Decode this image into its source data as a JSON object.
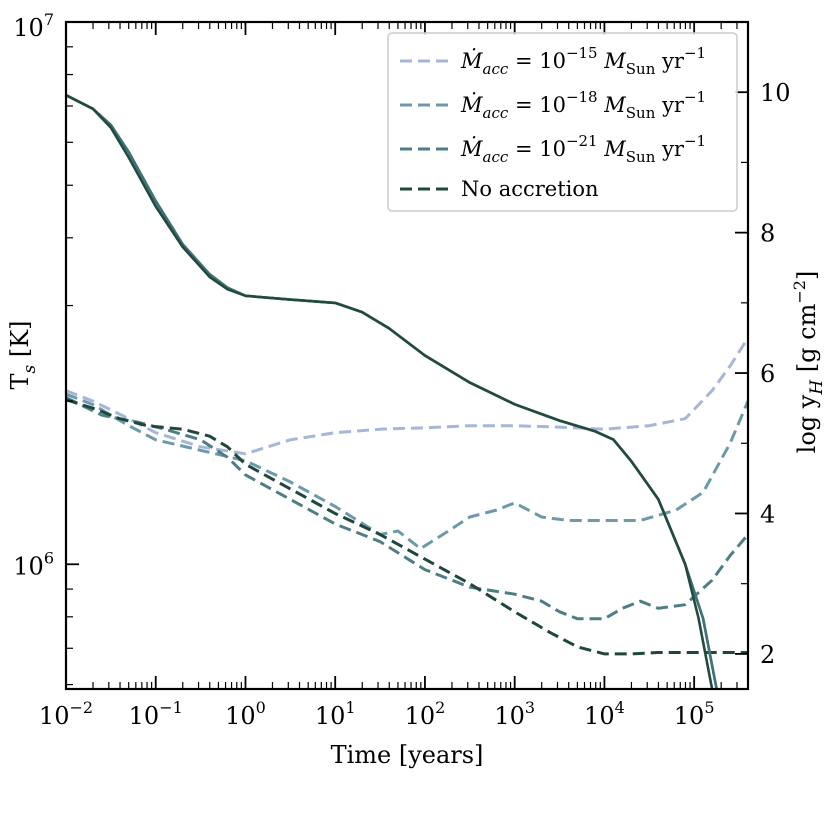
{
  "chart_data": {
    "type": "line",
    "xlabel": "Time [years]",
    "ylabel_left": "T_s [K]",
    "ylabel_right": "log y_H [g cm^-2]",
    "x_scale": "log",
    "xlim_log10": [
      -2,
      5.6
    ],
    "ylim_left_log10": [
      5.77,
      7.0
    ],
    "ylim_right": [
      1.5,
      11.0
    ],
    "x_ticks": [
      {
        "exp": -2,
        "label": "10",
        "sup": "−2"
      },
      {
        "exp": -1,
        "label": "10",
        "sup": "−1"
      },
      {
        "exp": 0,
        "label": "10",
        "sup": "0"
      },
      {
        "exp": 1,
        "label": "10",
        "sup": "1"
      },
      {
        "exp": 2,
        "label": "10",
        "sup": "2"
      },
      {
        "exp": 3,
        "label": "10",
        "sup": "3"
      },
      {
        "exp": 4,
        "label": "10",
        "sup": "4"
      },
      {
        "exp": 5,
        "label": "10",
        "sup": "5"
      }
    ],
    "y_left_ticks": [
      {
        "exp": 6,
        "label": "10",
        "sup": "6"
      },
      {
        "exp": 7,
        "label": "10",
        "sup": "7"
      }
    ],
    "y_right_ticks": [
      2,
      4,
      6,
      8,
      10
    ],
    "temperature_series": [
      {
        "name": "T_s (accretion 1e-15)",
        "color": "#5d8e9a",
        "points": [
          [
            -2,
            6.865
          ],
          [
            -1.7,
            6.84
          ],
          [
            -1.5,
            6.81
          ],
          [
            -1.3,
            6.76
          ],
          [
            -1,
            6.67
          ],
          [
            -0.7,
            6.59
          ],
          [
            -0.4,
            6.535
          ],
          [
            -0.2,
            6.51
          ],
          [
            0,
            6.495
          ],
          [
            0.5,
            6.488
          ],
          [
            1,
            6.482
          ],
          [
            1.3,
            6.465
          ],
          [
            1.6,
            6.435
          ],
          [
            2,
            6.385
          ],
          [
            2.5,
            6.335
          ],
          [
            3,
            6.295
          ],
          [
            3.5,
            6.265
          ],
          [
            3.9,
            6.245
          ],
          [
            4.1,
            6.23
          ],
          [
            4.3,
            6.19
          ],
          [
            4.6,
            6.12
          ],
          [
            4.9,
            6.0
          ],
          [
            5.1,
            5.9
          ],
          [
            5.25,
            5.77
          ]
        ]
      },
      {
        "name": "T_s (accretion 1e-18)",
        "color": "#3f7276",
        "points": [
          [
            -2,
            6.865
          ],
          [
            -1.7,
            6.84
          ],
          [
            -1.5,
            6.81
          ],
          [
            -1.3,
            6.76
          ],
          [
            -1,
            6.67
          ],
          [
            -0.7,
            6.59
          ],
          [
            -0.4,
            6.535
          ],
          [
            -0.2,
            6.51
          ],
          [
            0,
            6.495
          ],
          [
            0.5,
            6.488
          ],
          [
            1,
            6.482
          ],
          [
            1.3,
            6.465
          ],
          [
            1.6,
            6.435
          ],
          [
            2,
            6.385
          ],
          [
            2.5,
            6.335
          ],
          [
            3,
            6.295
          ],
          [
            3.5,
            6.265
          ],
          [
            3.9,
            6.245
          ],
          [
            4.1,
            6.23
          ],
          [
            4.3,
            6.19
          ],
          [
            4.6,
            6.12
          ],
          [
            4.9,
            6.0
          ],
          [
            5.1,
            5.9
          ],
          [
            5.25,
            5.77
          ]
        ]
      },
      {
        "name": "T_s (no accretion)",
        "color": "#234a3e",
        "points": [
          [
            -2,
            6.865
          ],
          [
            -1.7,
            6.84
          ],
          [
            -1.5,
            6.805
          ],
          [
            -1.3,
            6.75
          ],
          [
            -1,
            6.66
          ],
          [
            -0.7,
            6.585
          ],
          [
            -0.4,
            6.53
          ],
          [
            -0.2,
            6.507
          ],
          [
            0,
            6.495
          ],
          [
            0.5,
            6.488
          ],
          [
            1,
            6.482
          ],
          [
            1.3,
            6.465
          ],
          [
            1.6,
            6.435
          ],
          [
            2,
            6.385
          ],
          [
            2.5,
            6.335
          ],
          [
            3,
            6.295
          ],
          [
            3.5,
            6.265
          ],
          [
            3.9,
            6.245
          ],
          [
            4.1,
            6.23
          ],
          [
            4.3,
            6.19
          ],
          [
            4.6,
            6.12
          ],
          [
            4.9,
            6.0
          ],
          [
            5.05,
            5.9
          ],
          [
            5.2,
            5.77
          ]
        ]
      }
    ],
    "column_series": [
      {
        "name": "Ṁacc = 10^−15 MSun yr^−1",
        "label_main": "Ṁ",
        "label_sub": "acc",
        "label_mid": " = 10",
        "label_sup": "−15",
        "label_unit": " M",
        "label_unit_sub": "Sun",
        "label_tail": " yr",
        "label_tail_sup": "−1",
        "color": "#a6b6d6",
        "points": [
          [
            -2,
            5.75
          ],
          [
            -1.7,
            5.6
          ],
          [
            -1.3,
            5.35
          ],
          [
            -1,
            5.15
          ],
          [
            -0.5,
            4.95
          ],
          [
            0,
            4.85
          ],
          [
            0.5,
            5.05
          ],
          [
            1,
            5.15
          ],
          [
            1.5,
            5.2
          ],
          [
            2,
            5.22
          ],
          [
            2.5,
            5.25
          ],
          [
            3,
            5.25
          ],
          [
            3.5,
            5.23
          ],
          [
            4,
            5.2
          ],
          [
            4.5,
            5.25
          ],
          [
            4.9,
            5.35
          ],
          [
            5.2,
            5.75
          ],
          [
            5.4,
            6.1
          ],
          [
            5.6,
            6.5
          ]
        ]
      },
      {
        "name": "Ṁacc = 10^−18 MSun yr^−1",
        "label_main": "Ṁ",
        "label_sub": "acc",
        "label_mid": " = 10",
        "label_sup": "−18",
        "label_unit": " M",
        "label_unit_sub": "Sun",
        "label_tail": " yr",
        "label_tail_sup": "−1",
        "color": "#6c9aaa",
        "points": [
          [
            -2,
            5.7
          ],
          [
            -1.7,
            5.55
          ],
          [
            -1.3,
            5.25
          ],
          [
            -1,
            5.05
          ],
          [
            -0.5,
            4.9
          ],
          [
            0,
            4.75
          ],
          [
            0.5,
            4.45
          ],
          [
            1,
            4.1
          ],
          [
            1.5,
            3.7
          ],
          [
            1.7,
            3.75
          ],
          [
            1.95,
            3.5
          ],
          [
            2.2,
            3.7
          ],
          [
            2.5,
            3.95
          ],
          [
            2.8,
            4.05
          ],
          [
            3,
            4.15
          ],
          [
            3.3,
            3.95
          ],
          [
            3.6,
            3.9
          ],
          [
            4,
            3.9
          ],
          [
            4.4,
            3.9
          ],
          [
            4.8,
            4.05
          ],
          [
            5.1,
            4.3
          ],
          [
            5.4,
            5.0
          ],
          [
            5.6,
            5.6
          ]
        ]
      },
      {
        "name": "Ṁacc = 10^−21 MSun yr^−1",
        "label_main": "Ṁ",
        "label_sub": "acc",
        "label_mid": " = 10",
        "label_sup": "−21",
        "label_unit": " M",
        "label_unit_sub": "Sun",
        "label_tail": " yr",
        "label_tail_sup": "−1",
        "color": "#4e7e83",
        "points": [
          [
            -2,
            5.65
          ],
          [
            -1.6,
            5.4
          ],
          [
            -1.2,
            5.3
          ],
          [
            -0.9,
            5.2
          ],
          [
            -0.5,
            5.05
          ],
          [
            -0.2,
            4.8
          ],
          [
            0,
            4.55
          ],
          [
            0.5,
            4.2
          ],
          [
            1,
            3.85
          ],
          [
            1.5,
            3.6
          ],
          [
            2,
            3.2
          ],
          [
            2.5,
            2.95
          ],
          [
            3,
            2.85
          ],
          [
            3.3,
            2.75
          ],
          [
            3.5,
            2.6
          ],
          [
            3.7,
            2.5
          ],
          [
            4,
            2.5
          ],
          [
            4.2,
            2.65
          ],
          [
            4.4,
            2.75
          ],
          [
            4.6,
            2.65
          ],
          [
            4.9,
            2.7
          ],
          [
            5.2,
            3.05
          ],
          [
            5.4,
            3.4
          ],
          [
            5.6,
            3.7
          ]
        ]
      },
      {
        "name": "No accretion",
        "label_main": "No accretion",
        "color": "#1f473c",
        "points": [
          [
            -2,
            5.62
          ],
          [
            -1.7,
            5.5
          ],
          [
            -1.4,
            5.35
          ],
          [
            -1.1,
            5.25
          ],
          [
            -0.7,
            5.2
          ],
          [
            -0.4,
            5.1
          ],
          [
            -0.2,
            4.95
          ],
          [
            0,
            4.7
          ],
          [
            0.5,
            4.35
          ],
          [
            1,
            4.0
          ],
          [
            1.5,
            3.7
          ],
          [
            2,
            3.35
          ],
          [
            2.5,
            3.0
          ],
          [
            3,
            2.6
          ],
          [
            3.4,
            2.3
          ],
          [
            3.7,
            2.1
          ],
          [
            4,
            2.0
          ],
          [
            4.3,
            2.0
          ],
          [
            4.6,
            2.02
          ],
          [
            5,
            2.02
          ],
          [
            5.6,
            2.02
          ]
        ]
      }
    ]
  }
}
